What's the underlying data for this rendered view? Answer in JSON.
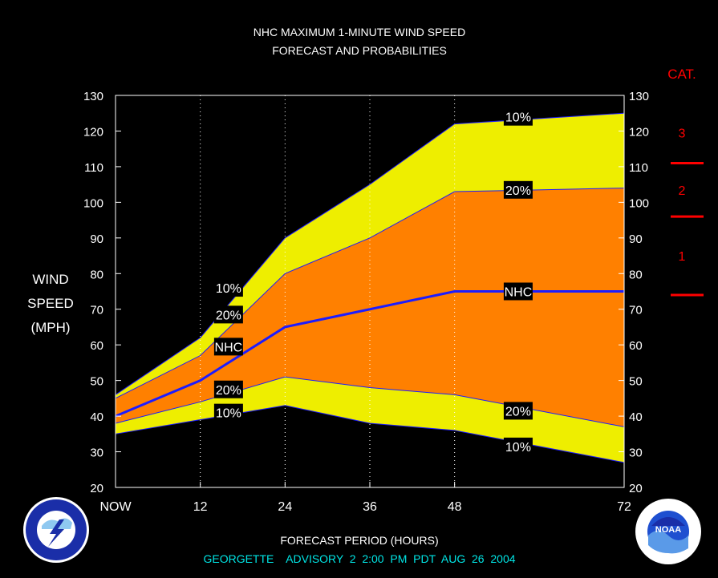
{
  "chart_data": {
    "type": "area",
    "title_line1": "NHC MAXIMUM 1-MINUTE WIND SPEED",
    "title_line2": "FORECAST AND PROBABILITIES",
    "ylabel": [
      "WIND",
      "SPEED",
      "(MPH)"
    ],
    "xlabel": "FORECAST PERIOD (HOURS)",
    "advisory": "GEORGETTE    ADVISORY  2  2:00  PM  PDT  AUG  26  2004",
    "xlim": [
      0,
      72
    ],
    "ylim": [
      20,
      130
    ],
    "x_ticks": [
      {
        "x": 0,
        "label": "NOW"
      },
      {
        "x": 12,
        "label": "12"
      },
      {
        "x": 24,
        "label": "24"
      },
      {
        "x": 36,
        "label": "36"
      },
      {
        "x": 48,
        "label": "48"
      },
      {
        "x": 72,
        "label": "72"
      }
    ],
    "y_ticks": [
      20,
      30,
      40,
      50,
      60,
      70,
      80,
      90,
      100,
      110,
      120,
      130
    ],
    "x": [
      0,
      12,
      24,
      36,
      48,
      72
    ],
    "series": [
      {
        "name": "10%",
        "role": "upper10",
        "values": [
          46,
          62,
          90,
          105,
          122,
          125
        ]
      },
      {
        "name": "20%",
        "role": "upper20",
        "values": [
          45,
          57,
          80,
          90,
          103,
          104
        ]
      },
      {
        "name": "NHC",
        "role": "nhc",
        "values": [
          40,
          50,
          65,
          70,
          75,
          75
        ]
      },
      {
        "name": "20%",
        "role": "lower20",
        "values": [
          38,
          44,
          51,
          48,
          46,
          37
        ]
      },
      {
        "name": "10%",
        "role": "lower10",
        "values": [
          35,
          39,
          43,
          38,
          36,
          27
        ]
      }
    ],
    "labels": [
      {
        "text": "10%",
        "x": 16,
        "y": 76
      },
      {
        "text": "20%",
        "x": 16,
        "y": 68.5
      },
      {
        "text": "NHC",
        "x": 16,
        "y": 59.5
      },
      {
        "text": "20%",
        "x": 16,
        "y": 47.5
      },
      {
        "text": "10%",
        "x": 16,
        "y": 41
      },
      {
        "text": "10%",
        "x": 57,
        "y": 124
      },
      {
        "text": "20%",
        "x": 57,
        "y": 103.5
      },
      {
        "text": "NHC",
        "x": 57,
        "y": 75
      },
      {
        "text": "20%",
        "x": 57,
        "y": 41.5
      },
      {
        "text": "10%",
        "x": 57,
        "y": 31.5
      }
    ],
    "category_header": "CAT.",
    "categories": [
      {
        "label": "3",
        "lower_bound_mph": 111
      },
      {
        "label": "2",
        "lower_bound_mph": 96
      },
      {
        "label": "1",
        "lower_bound_mph": 74
      }
    ],
    "colors": {
      "background": "#000000",
      "band10": "#eeee00",
      "band20": "#ff8000",
      "nhc_line": "#1c1cff",
      "category": "#ff0000",
      "advisory": "#00e5e5",
      "text": "#ffffff"
    }
  },
  "logos": {
    "left": "NATIONAL WEATHER SERVICE",
    "right": "NOAA"
  }
}
